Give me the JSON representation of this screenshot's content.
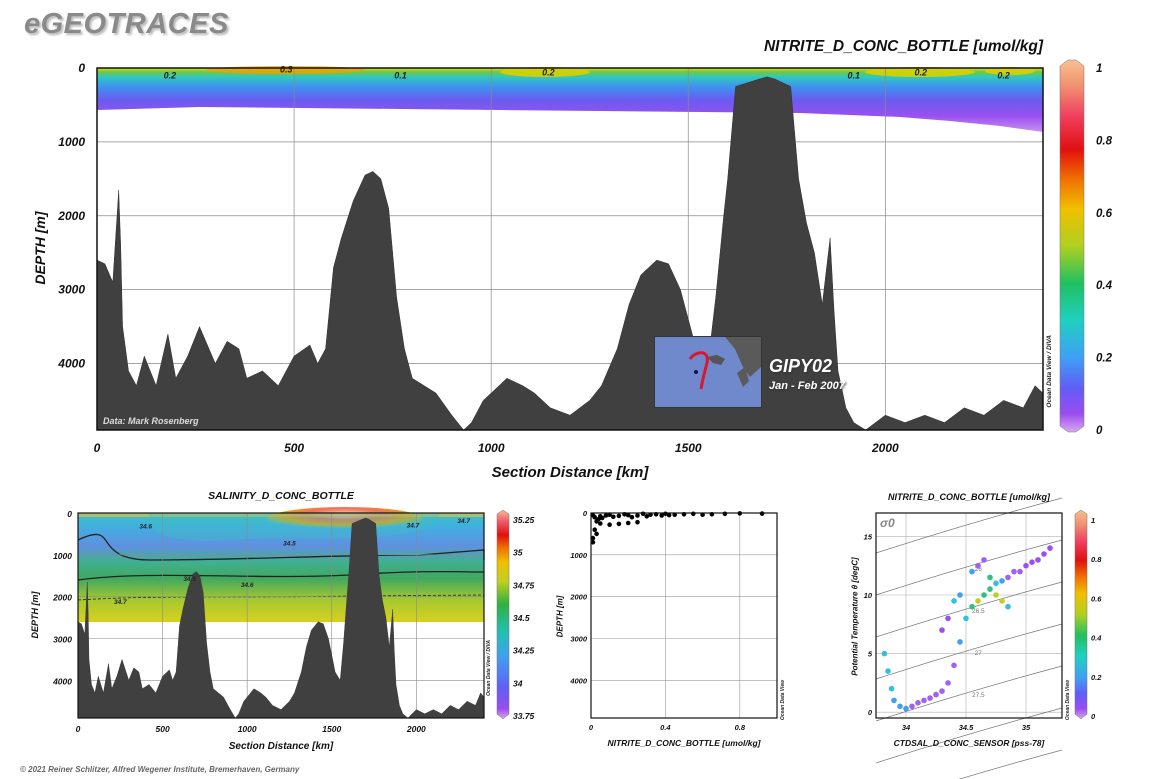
{
  "brand": "eGEOTRACES",
  "copyright": "© 2021 Reiner Schlitzer, Alfred Wegener Institute, Bremerhaven, Germany",
  "odv_credit": "Ocean Data View / DIVA",
  "odv_credit_short": "Ocean Data View",
  "inset": {
    "title": "GIPY02",
    "date": "Jan - Feb 2007"
  },
  "data_credit": "Data: Mark Rosenberg",
  "colors": {
    "bathymetry": "#404040",
    "background": "#ffffff",
    "brand": "#8a8a8a"
  },
  "chart_data": [
    {
      "type": "heatmap",
      "name": "main-section",
      "title": "NITRITE_D_CONC_BOTTLE [umol/kg]",
      "xlabel": "Section Distance [km]",
      "ylabel": "DEPTH [m]",
      "xlim": [
        0,
        2400
      ],
      "ylim": [
        4900,
        0
      ],
      "xticks": [
        0,
        500,
        1000,
        1500,
        2000
      ],
      "yticks": [
        0,
        1000,
        2000,
        3000,
        4000
      ],
      "colorbar": {
        "range": [
          0,
          1
        ],
        "ticks": [
          0,
          0.2,
          0.4,
          0.6,
          0.8,
          1
        ]
      },
      "contour_labels": [
        {
          "text": "0.2",
          "x": 185,
          "depth": 100
        },
        {
          "text": "0.3",
          "x": 480,
          "depth": 20
        },
        {
          "text": "0.1",
          "x": 770,
          "depth": 100
        },
        {
          "text": "0.2",
          "x": 1145,
          "depth": 60
        },
        {
          "text": "0.1",
          "x": 1920,
          "depth": 100
        },
        {
          "text": "0.2",
          "x": 2090,
          "depth": 60
        },
        {
          "text": "0.2",
          "x": 2300,
          "depth": 100
        }
      ],
      "grid": true,
      "bathymetry": {
        "x": [
          0,
          20,
          40,
          55,
          60,
          65,
          80,
          100,
          120,
          150,
          180,
          200,
          230,
          260,
          300,
          330,
          360,
          380,
          420,
          460,
          500,
          540,
          560,
          580,
          600,
          620,
          650,
          680,
          700,
          720,
          740,
          760,
          780,
          800,
          830,
          860,
          900,
          930,
          950,
          980,
          1000,
          1040,
          1080,
          1110,
          1150,
          1200,
          1250,
          1280,
          1320,
          1350,
          1380,
          1400,
          1420,
          1450,
          1480,
          1500,
          1520,
          1550,
          1570,
          1590,
          1600,
          1620,
          1650,
          1680,
          1700,
          1720,
          1740,
          1760,
          1780,
          1800,
          1820,
          1840,
          1860,
          1870,
          1880,
          1900,
          1920,
          1950,
          2000,
          2050,
          2100,
          2150,
          2200,
          2250,
          2300,
          2350,
          2380,
          2400
        ],
        "depth": [
          2600,
          2650,
          2900,
          1650,
          2400,
          3500,
          4100,
          4300,
          3900,
          4300,
          3600,
          4200,
          3900,
          3500,
          4000,
          3700,
          3800,
          4200,
          4100,
          4300,
          3900,
          3750,
          4000,
          3800,
          2700,
          2300,
          1800,
          1450,
          1400,
          1500,
          1900,
          3100,
          3800,
          4200,
          4300,
          4400,
          4700,
          4900,
          4800,
          4500,
          4400,
          4200,
          4300,
          4400,
          4600,
          4700,
          4500,
          4300,
          3800,
          3200,
          2800,
          2700,
          2600,
          2650,
          3000,
          3400,
          3800,
          4000,
          3100,
          2000,
          1500,
          250,
          200,
          150,
          120,
          150,
          200,
          250,
          1500,
          2100,
          2500,
          3200,
          2300,
          3300,
          4100,
          4600,
          4800,
          4900,
          4700,
          4800,
          4700,
          4800,
          4600,
          4700,
          4500,
          4600,
          4300,
          4400
        ]
      }
    },
    {
      "type": "heatmap",
      "name": "salinity-section",
      "title": "SALINITY_D_CONC_BOTTLE",
      "xlabel": "Section Distance [km]",
      "ylabel": "DEPTH [m]",
      "xlim": [
        0,
        2400
      ],
      "ylim": [
        4900,
        0
      ],
      "xticks": [
        0,
        500,
        1000,
        1500,
        2000
      ],
      "yticks": [
        0,
        1000,
        2000,
        3000,
        4000
      ],
      "colorbar": {
        "range": [
          33.75,
          35.25
        ],
        "ticks": [
          33.75,
          34,
          34.25,
          34.5,
          34.75,
          35,
          35.25
        ]
      },
      "contour_labels": [
        {
          "text": "34.6",
          "x": 400,
          "depth": 300
        },
        {
          "text": "34.5",
          "x": 1250,
          "depth": 700
        },
        {
          "text": "34.7",
          "x": 1980,
          "depth": 270
        },
        {
          "text": "34.7",
          "x": 2280,
          "depth": 170
        },
        {
          "text": "34.5",
          "x": 660,
          "depth": 1550
        },
        {
          "text": "34.6",
          "x": 1000,
          "depth": 1700
        },
        {
          "text": "34.7",
          "x": 250,
          "depth": 2100
        }
      ],
      "grid": true
    },
    {
      "type": "scatter",
      "name": "nitrite-profile",
      "title": "",
      "xlabel": "NITRITE_D_CONC_BOTTLE [umol/kg]",
      "ylabel": "DEPTH [m]",
      "xlim": [
        0,
        1
      ],
      "ylim": [
        4900,
        0
      ],
      "xticks": [
        0,
        0.4,
        0.8
      ],
      "yticks": [
        0,
        1000,
        2000,
        3000,
        4000
      ],
      "grid": true,
      "series": [
        {
          "x": [
            0.01,
            0.02,
            0.03,
            0.04,
            0.05,
            0.06,
            0.08,
            0.1,
            0.12,
            0.15,
            0.18,
            0.2,
            0.22,
            0.25,
            0.28,
            0.3,
            0.32,
            0.35,
            0.38,
            0.4,
            0.42,
            0.45,
            0.5,
            0.55,
            0.6,
            0.65,
            0.72,
            0.8,
            0.92,
            0.05,
            0.1,
            0.15,
            0.2,
            0.25,
            0.02,
            0.03,
            0.01,
            0.01
          ],
          "y": [
            50,
            100,
            200,
            150,
            80,
            120,
            60,
            40,
            90,
            70,
            30,
            50,
            100,
            60,
            20,
            80,
            40,
            30,
            60,
            20,
            50,
            40,
            30,
            20,
            40,
            30,
            20,
            10,
            15,
            250,
            280,
            260,
            240,
            220,
            400,
            500,
            600,
            700
          ]
        }
      ]
    },
    {
      "type": "scatter",
      "name": "ts-diagram",
      "title": "NITRITE_D_CONC_BOTTLE [umol/kg]",
      "xlabel": "CTDSAL_D_CONC_SENSOR [pss-78]",
      "ylabel": "Potential Temperature θ [degC]",
      "xlim": [
        33.75,
        35.3
      ],
      "ylim": [
        -0.5,
        17
      ],
      "xticks": [
        34,
        34.5,
        35
      ],
      "yticks": [
        0,
        5,
        10,
        15
      ],
      "sigma_label": "σ0",
      "isopycnals": [
        26,
        26.5,
        27,
        27.5
      ],
      "colorbar": {
        "range": [
          0,
          1
        ],
        "ticks": [
          0,
          0.2,
          0.4,
          0.6,
          0.8,
          1
        ]
      },
      "grid": true,
      "series": [
        {
          "x": [
            33.82,
            33.85,
            33.88,
            33.9,
            33.95,
            34.0,
            34.05,
            34.1,
            34.15,
            34.2,
            34.25,
            34.3,
            34.35,
            34.4,
            34.45,
            34.5,
            34.55,
            34.6,
            34.65,
            34.7,
            34.75,
            34.8,
            34.85,
            34.9,
            34.95,
            35.0,
            35.05,
            35.1,
            35.15,
            35.2,
            34.55,
            34.6,
            34.65,
            34.7,
            34.75,
            34.8,
            34.85,
            34.4,
            34.45,
            34.3,
            34.35
          ],
          "y": [
            5,
            3.5,
            2,
            1,
            0.5,
            0.3,
            0.5,
            0.8,
            1,
            1.2,
            1.5,
            1.8,
            2.5,
            4,
            6,
            8,
            9,
            9.5,
            10,
            10.5,
            11,
            11.2,
            11.5,
            12,
            12,
            12.5,
            12.8,
            13,
            13.5,
            14,
            12,
            12.5,
            13,
            11.5,
            10,
            9.5,
            9,
            9.5,
            10,
            7,
            8
          ],
          "value": [
            0.2,
            0.18,
            0.15,
            0.12,
            0.1,
            0.1,
            0.08,
            0.08,
            0.06,
            0.05,
            0.05,
            0.05,
            0.05,
            0.05,
            0.1,
            0.2,
            0.3,
            0.35,
            0.3,
            0.25,
            0.15,
            0.1,
            0.05,
            0.05,
            0.05,
            0.02,
            0.02,
            0.02,
            0.02,
            0.02,
            0.1,
            0.08,
            0.06,
            0.3,
            0.4,
            0.35,
            0.2,
            0.15,
            0.1,
            0.02,
            0.02
          ]
        }
      ]
    }
  ]
}
